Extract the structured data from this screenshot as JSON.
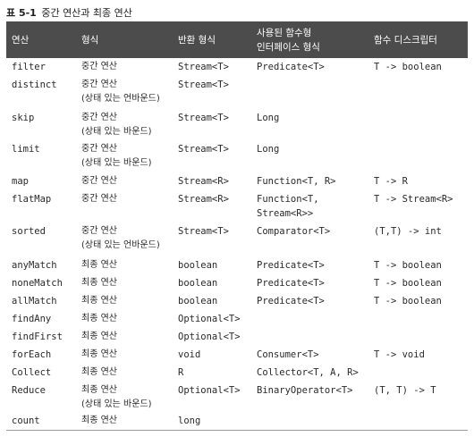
{
  "caption": {
    "number": "표 5-1",
    "title": "중간 연산과 최종 연산"
  },
  "headers": {
    "op": "연산",
    "form": "형식",
    "ret": "반환 형식",
    "fi_line1": "사용된 함수형",
    "fi_line2": "인터페이스 형식",
    "desc": "함수 디스크립터"
  },
  "rows": [
    {
      "op": "filter",
      "form": "중간 연산",
      "form_sub": "",
      "ret": "Stream<T>",
      "fi": "Predicate<T>",
      "fi_sub": "",
      "desc": "T -> boolean"
    },
    {
      "op": "distinct",
      "form": "중간 연산",
      "form_sub": "(상태 있는 언바운드)",
      "ret": "Stream<T>",
      "fi": "",
      "fi_sub": "",
      "desc": ""
    },
    {
      "op": "skip",
      "form": "중간 연산",
      "form_sub": "(상태 있는 바운드)",
      "ret": "Stream<T>",
      "fi": "Long",
      "fi_sub": "",
      "desc": ""
    },
    {
      "op": "limit",
      "form": "중간 연산",
      "form_sub": "(상태 있는 바운드)",
      "ret": "Stream<T>",
      "fi": "Long",
      "fi_sub": "",
      "desc": ""
    },
    {
      "op": "map",
      "form": "중간 연산",
      "form_sub": "",
      "ret": "Stream<R>",
      "fi": "Function<T, R>",
      "fi_sub": "",
      "desc": "T -> R"
    },
    {
      "op": "flatMap",
      "form": "중간 연산",
      "form_sub": "",
      "ret": "Stream<R>",
      "fi": "Function<T,",
      "fi_sub": "Stream<R>>",
      "desc": "T -> Stream<R>"
    },
    {
      "op": "sorted",
      "form": "중간 연산",
      "form_sub": "(상태 있는 언바운드)",
      "ret": "Stream<T>",
      "fi": "Comparator<T>",
      "fi_sub": "",
      "desc": "(T,T) -> int"
    },
    {
      "op": "anyMatch",
      "form": "최종 연산",
      "form_sub": "",
      "ret": "boolean",
      "fi": "Predicate<T>",
      "fi_sub": "",
      "desc": "T -> boolean"
    },
    {
      "op": "noneMatch",
      "form": "최종 연산",
      "form_sub": "",
      "ret": "boolean",
      "fi": "Predicate<T>",
      "fi_sub": "",
      "desc": "T -> boolean"
    },
    {
      "op": "allMatch",
      "form": "최종 연산",
      "form_sub": "",
      "ret": "boolean",
      "fi": "Predicate<T>",
      "fi_sub": "",
      "desc": "T -> boolean"
    },
    {
      "op": "findAny",
      "form": "최종 연산",
      "form_sub": "",
      "ret": "Optional<T>",
      "fi": "",
      "fi_sub": "",
      "desc": ""
    },
    {
      "op": "findFirst",
      "form": "최종 연산",
      "form_sub": "",
      "ret": "Optional<T>",
      "fi": "",
      "fi_sub": "",
      "desc": ""
    },
    {
      "op": "forEach",
      "form": "최종 연산",
      "form_sub": "",
      "ret": "void",
      "fi": "Consumer<T>",
      "fi_sub": "",
      "desc": "T -> void"
    },
    {
      "op": "Collect",
      "form": "최종 연산",
      "form_sub": "",
      "ret": "R",
      "fi": "Collector<T, A, R>",
      "fi_sub": "",
      "desc": ""
    },
    {
      "op": "Reduce",
      "form": "최종 연산",
      "form_sub": "(상태 있는 바운드)",
      "ret": "Optional<T>",
      "fi": "BinaryOperator<T>",
      "fi_sub": "",
      "desc": "(T, T) -> T"
    },
    {
      "op": "count",
      "form": "최종 연산",
      "form_sub": "",
      "ret": "long",
      "fi": "",
      "fi_sub": "",
      "desc": ""
    }
  ]
}
